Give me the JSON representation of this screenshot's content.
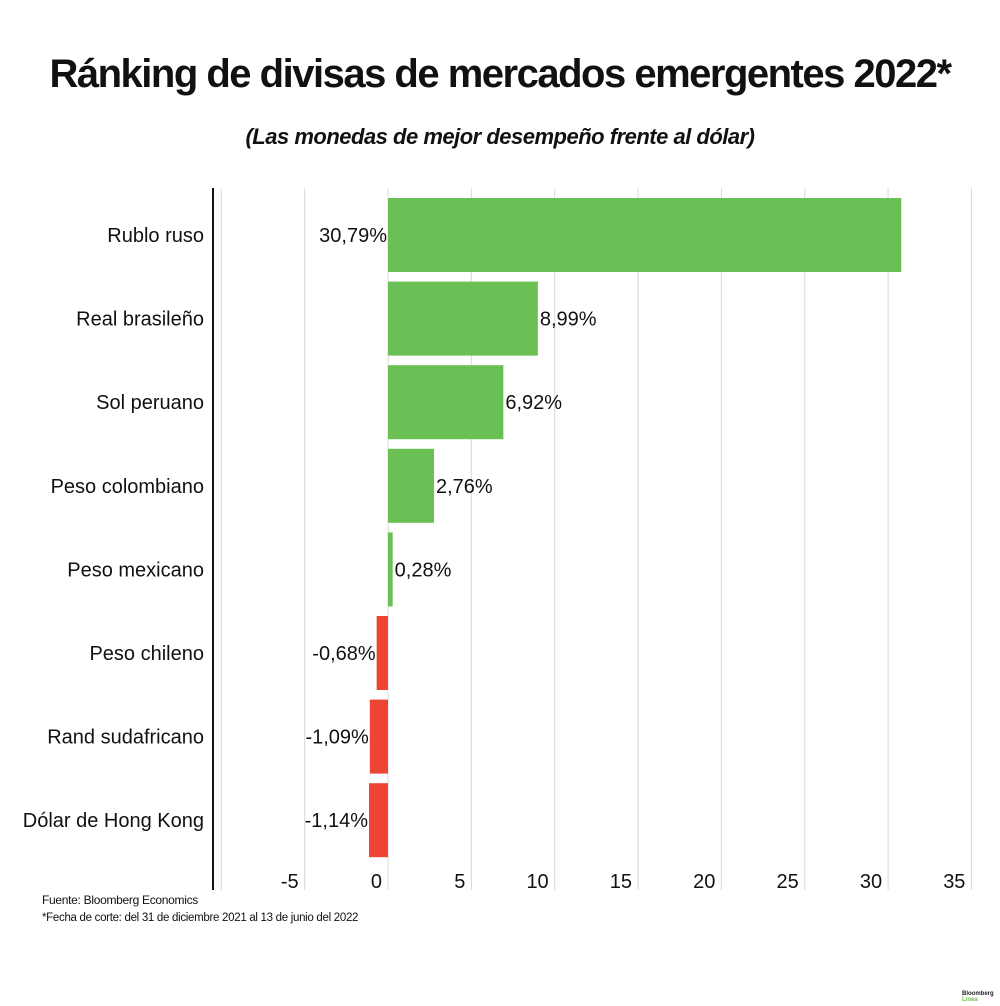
{
  "chart_data": {
    "type": "bar",
    "orientation": "horizontal",
    "title": "Ránking de divisas de mercados emergentes 2022*",
    "subtitle": "(Las monedas de mejor desempeño frente al dólar)",
    "categories": [
      "Rublo ruso",
      "Real brasileño",
      "Sol peruano",
      "Peso colombiano",
      "Peso mexicano",
      "Peso chileno",
      "Rand sudafricano",
      "Dólar de Hong Kong"
    ],
    "values": [
      30.79,
      8.99,
      6.92,
      2.76,
      0.28,
      -0.68,
      -1.09,
      -1.14
    ],
    "data_labels": [
      "30,79%",
      "8,99%",
      "6,92%",
      "2,76%",
      "0,28%",
      "-0,68%",
      "-1,09%",
      "-1,14%"
    ],
    "xlim": [
      -10,
      35
    ],
    "xticks": [
      -5,
      0,
      5,
      10,
      15,
      20,
      25,
      30,
      35
    ],
    "gridlines": [
      -10,
      -5,
      0,
      5,
      10,
      15,
      20,
      25,
      30,
      35
    ],
    "grid": true,
    "colors": {
      "positive": "#6abf55",
      "negative": "#ee4433"
    }
  },
  "footer": {
    "source": "Fuente: Bloomberg Economics",
    "note": "*Fecha de corte: del 31 de diciembre 2021 al  13 de junio del 2022"
  },
  "logo": {
    "line1": "Bloomberg",
    "line2": "Línea"
  }
}
